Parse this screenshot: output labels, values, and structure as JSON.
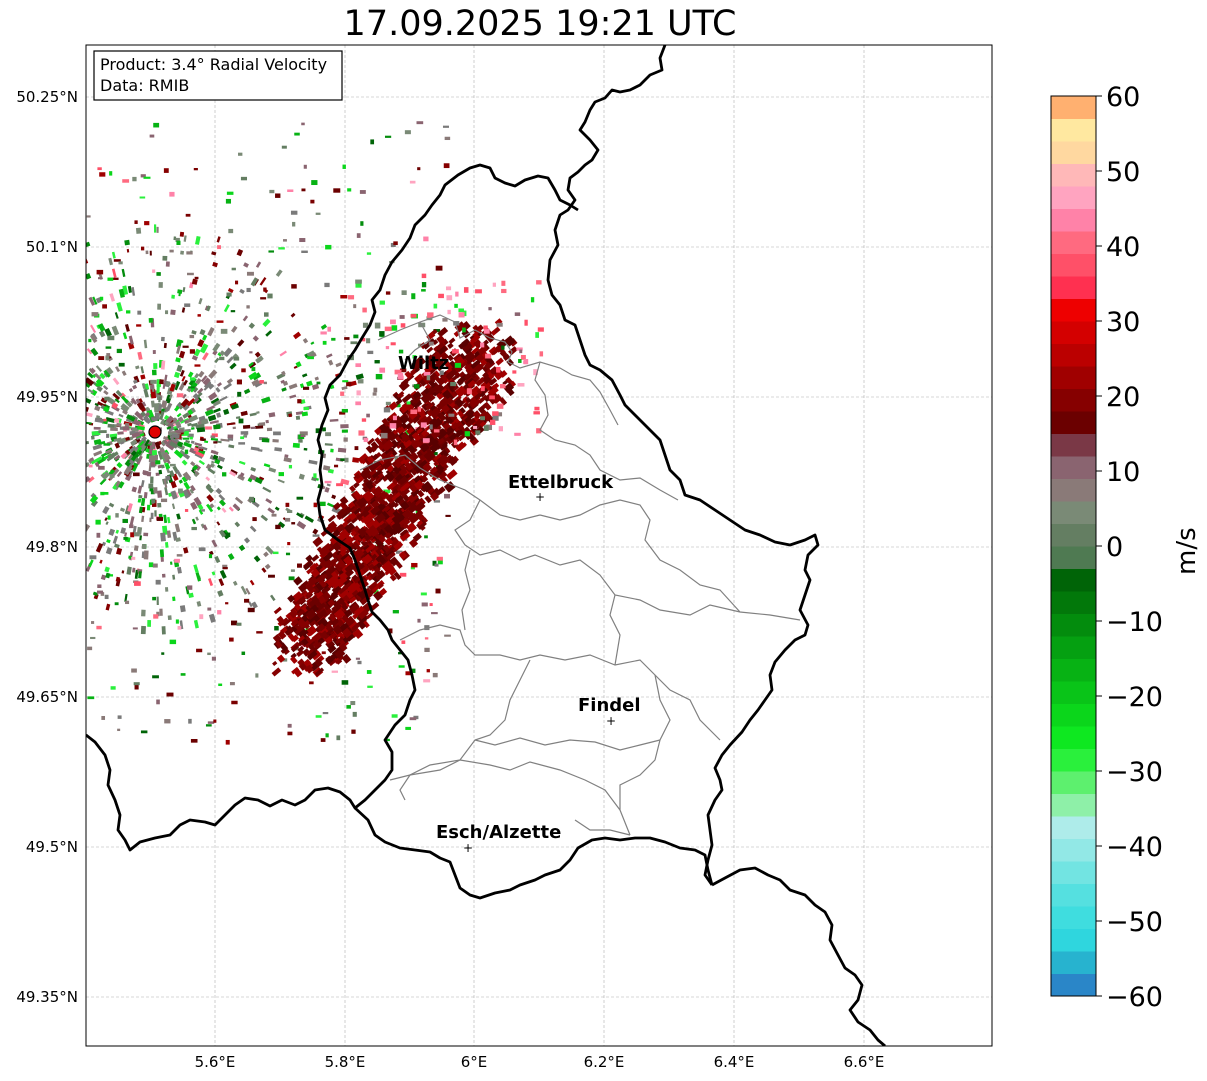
{
  "title": "17.09.2025 19:21 UTC",
  "info_box": {
    "product": "Product: 3.4° Radial Velocity",
    "data": "Data: RMIB"
  },
  "lat_labels": [
    "50.25°N",
    "50.1°N",
    "49.95°N",
    "49.8°N",
    "49.65°N",
    "49.5°N",
    "49.35°N"
  ],
  "lon_labels": [
    "5.6°E",
    "5.8°E",
    "6°E",
    "6.2°E",
    "6.4°E",
    "6.6°E"
  ],
  "cities": [
    {
      "name": "Wiltz"
    },
    {
      "name": "Ettelbruck"
    },
    {
      "name": "Findel"
    },
    {
      "name": "Esch/Alzette"
    }
  ],
  "colorbar": {
    "unit": "m/s",
    "ticks": [
      "60",
      "50",
      "40",
      "30",
      "20",
      "10",
      "0",
      "−10",
      "−20",
      "−30",
      "−40",
      "−50",
      "−60"
    ],
    "min": -60,
    "max": 60,
    "bands": [
      {
        "from": -60,
        "to": -57,
        "color": "#2a86c8"
      },
      {
        "from": -57,
        "to": -54,
        "color": "#27b3cf"
      },
      {
        "from": -54,
        "to": -51,
        "color": "#2fd6de"
      },
      {
        "from": -51,
        "to": -48,
        "color": "#3fdddf"
      },
      {
        "from": -48,
        "to": -45,
        "color": "#55e0e0"
      },
      {
        "from": -45,
        "to": -42,
        "color": "#72e4e2"
      },
      {
        "from": -42,
        "to": -39,
        "color": "#92e8e6"
      },
      {
        "from": -39,
        "to": -36,
        "color": "#aeecea"
      },
      {
        "from": -36,
        "to": -33,
        "color": "#8ef0a8"
      },
      {
        "from": -33,
        "to": -30,
        "color": "#5df06e"
      },
      {
        "from": -30,
        "to": -27,
        "color": "#2af03c"
      },
      {
        "from": -27,
        "to": -24,
        "color": "#0ee820"
      },
      {
        "from": -24,
        "to": -21,
        "color": "#0bd61b"
      },
      {
        "from": -21,
        "to": -18,
        "color": "#09c418"
      },
      {
        "from": -18,
        "to": -15,
        "color": "#07b214"
      },
      {
        "from": -15,
        "to": -12,
        "color": "#05a011"
      },
      {
        "from": -12,
        "to": -9,
        "color": "#038c0d"
      },
      {
        "from": -9,
        "to": -6,
        "color": "#02780a"
      },
      {
        "from": -6,
        "to": -3,
        "color": "#006407"
      },
      {
        "from": -3,
        "to": 0,
        "color": "#4f7a52"
      },
      {
        "from": 0,
        "to": 3,
        "color": "#647e62"
      },
      {
        "from": 3,
        "to": 6,
        "color": "#7a8a76"
      },
      {
        "from": 6,
        "to": 9,
        "color": "#8a7a78"
      },
      {
        "from": 9,
        "to": 12,
        "color": "#8a6470"
      },
      {
        "from": 12,
        "to": 15,
        "color": "#7a3846"
      },
      {
        "from": 15,
        "to": 18,
        "color": "#6b0000"
      },
      {
        "from": 18,
        "to": 21,
        "color": "#860000"
      },
      {
        "from": 21,
        "to": 24,
        "color": "#a00000"
      },
      {
        "from": 24,
        "to": 27,
        "color": "#bb0000"
      },
      {
        "from": 27,
        "to": 30,
        "color": "#d40000"
      },
      {
        "from": 30,
        "to": 33,
        "color": "#ee0000"
      },
      {
        "from": 33,
        "to": 36,
        "color": "#ff3050"
      },
      {
        "from": 36,
        "to": 39,
        "color": "#ff5068"
      },
      {
        "from": 39,
        "to": 42,
        "color": "#ff6a80"
      },
      {
        "from": 42,
        "to": 45,
        "color": "#ff82a8"
      },
      {
        "from": 45,
        "to": 48,
        "color": "#ffa4c0"
      },
      {
        "from": 48,
        "to": 51,
        "color": "#ffb8b8"
      },
      {
        "from": 51,
        "to": 54,
        "color": "#ffd8a0"
      },
      {
        "from": 54,
        "to": 57,
        "color": "#ffe8a0"
      },
      {
        "from": 57,
        "to": 60,
        "color": "#ffb070"
      }
    ]
  },
  "colors": {
    "border": "#000000",
    "canton": "#808080",
    "grid": "#b0b0b0",
    "radar_site": "#e00000"
  }
}
